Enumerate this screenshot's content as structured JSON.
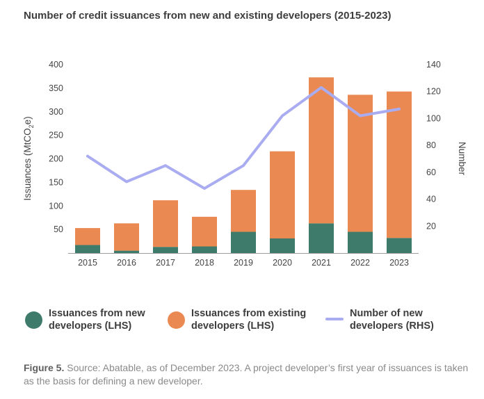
{
  "chart_data": {
    "type": "bar",
    "title": "Number of credit issuances from new and existing developers (2015-2023)",
    "categories": [
      "2015",
      "2016",
      "2017",
      "2018",
      "2019",
      "2020",
      "2021",
      "2022",
      "2023"
    ],
    "stacked": true,
    "series": [
      {
        "name": "Issuances from new developers (LHS)",
        "axis": "left",
        "color": "#3e7b6b",
        "values": [
          17,
          5,
          13,
          14,
          45,
          31,
          63,
          45,
          32
        ]
      },
      {
        "name": "Issuances from existing developers (LHS)",
        "axis": "left",
        "color": "#ea8a52",
        "values": [
          36,
          58,
          99,
          63,
          89,
          185,
          310,
          291,
          311
        ]
      },
      {
        "name": "Number of new developers (RHS)",
        "type": "line",
        "axis": "right",
        "color": "#a9acf0",
        "values": [
          72,
          53,
          65,
          48,
          65,
          102,
          123,
          102,
          107
        ]
      }
    ],
    "ylabel_left": "Issuances (MtCO",
    "ylabel_left_sub": "2",
    "ylabel_left_end": "e)",
    "ylabel_right": "Number",
    "ylim_left": [
      0,
      400
    ],
    "ylim_right": [
      0,
      140
    ],
    "yticks_left": [
      "50",
      "100",
      "150",
      "200",
      "250",
      "300",
      "350",
      "400"
    ],
    "yticks_right": [
      "20",
      "40",
      "60",
      "80",
      "100",
      "120",
      "140"
    ],
    "grid": false,
    "legend_position": "bottom"
  },
  "legend": {
    "new_label": "Issuances from new\ndevelopers (LHS)",
    "existing_label": "Issuances from existing\ndevelopers (LHS)",
    "line_label": "Number of new\ndevelopers (RHS)"
  },
  "caption": {
    "figure_label": "Figure 5.",
    "text": " Source: Abatable, as of December 2023. A project developer’s first year of issuances is taken as the basis for defining a new developer."
  }
}
